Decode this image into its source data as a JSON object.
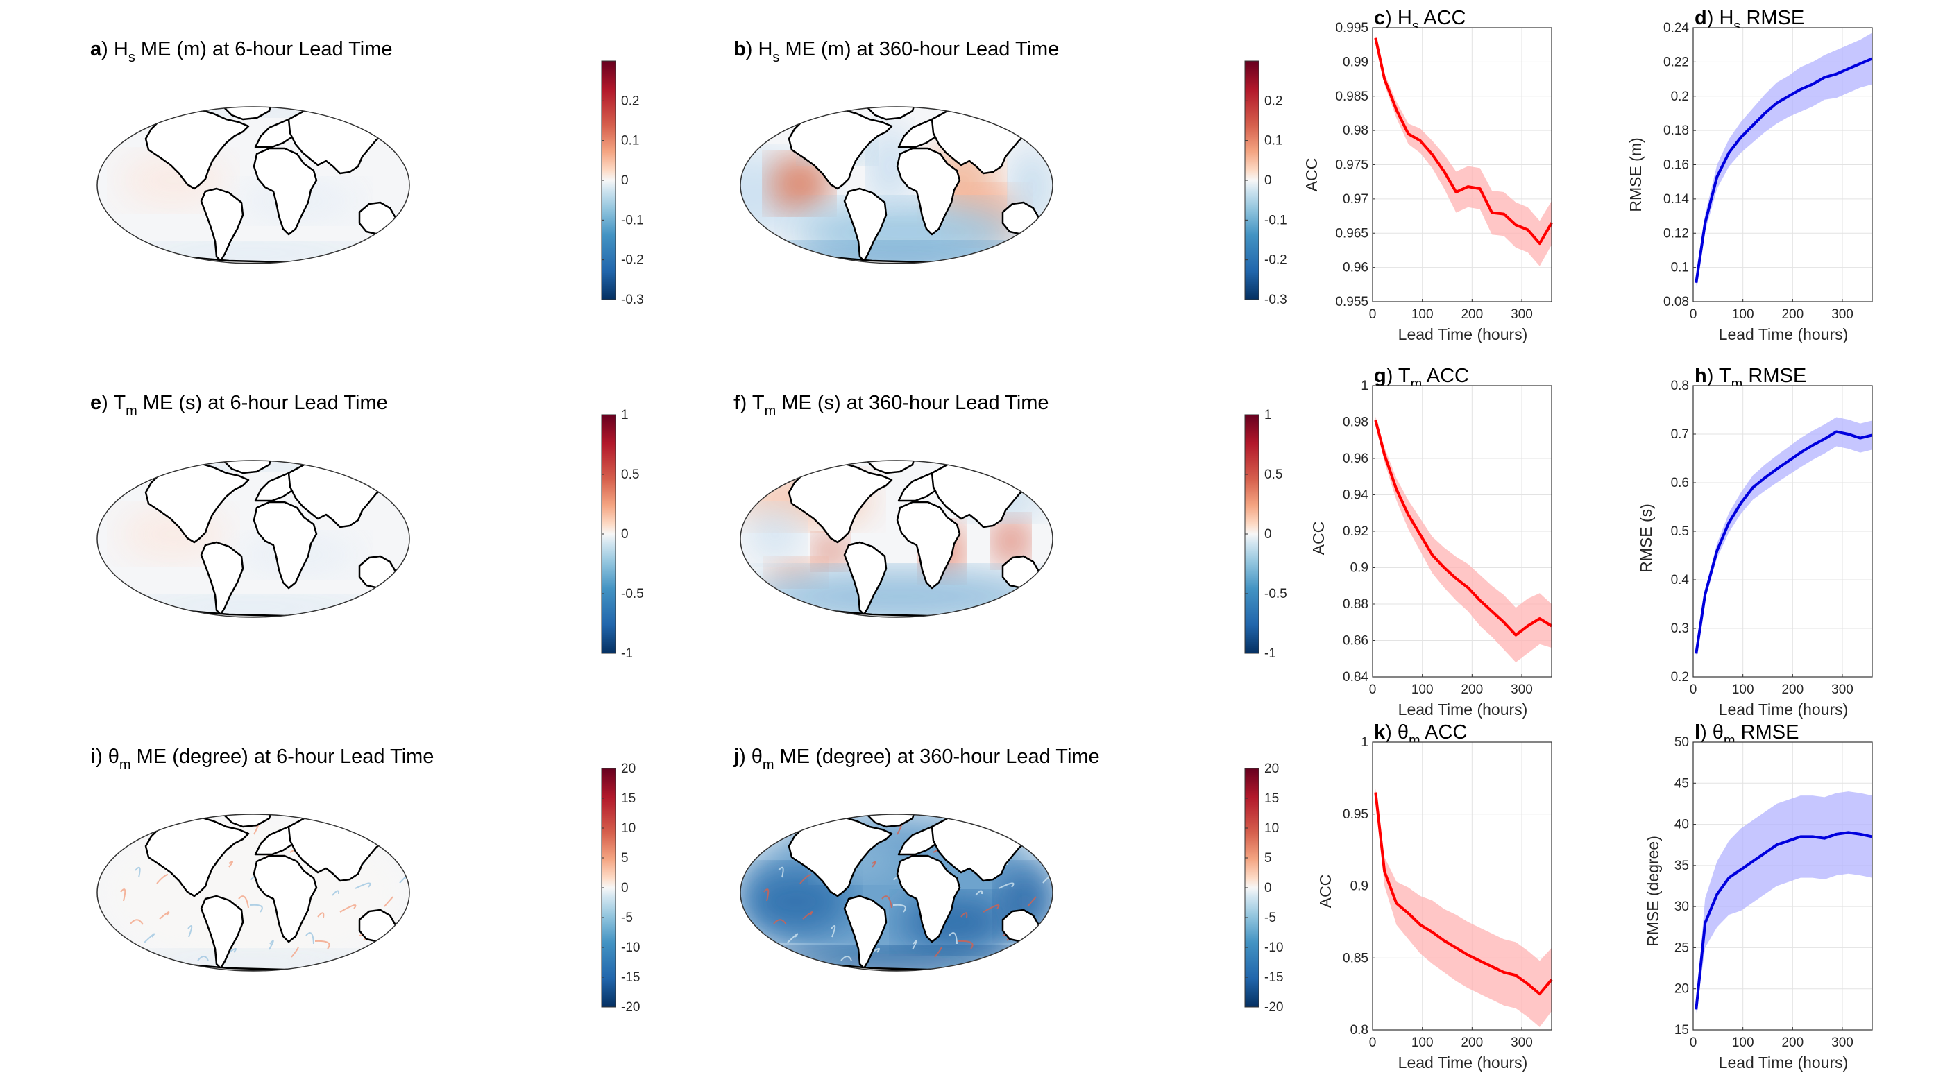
{
  "colors": {
    "red_line": "#ff0000",
    "red_band": "#ffb3b3",
    "blue_line": "#0000dd",
    "blue_band": "#b3b3ff",
    "land": "#ffffff",
    "div_neg": "#053061",
    "div_pos": "#67001f"
  },
  "chart_data": [
    {
      "id": "a",
      "type": "map",
      "letter": "a",
      "title_pre": "H",
      "title_sub": "s",
      "title_post": " ME (m) at 6-hour Lead Time",
      "colorbar": {
        "range": [
          -0.3,
          0.3
        ],
        "ticks": [
          "0.2",
          "0.1",
          "0",
          "-0.1",
          "-0.2",
          "-0.3"
        ]
      },
      "pattern": "faint"
    },
    {
      "id": "b",
      "type": "map",
      "letter": "b",
      "title_pre": "H",
      "title_sub": "s",
      "title_post": " ME (m) at 360-hour Lead Time",
      "colorbar": {
        "range": [
          -0.3,
          0.3
        ],
        "ticks": [
          "0.2",
          "0.1",
          "0",
          "-0.1",
          "-0.2",
          "-0.3"
        ]
      },
      "pattern": "hs360"
    },
    {
      "id": "e",
      "type": "map",
      "letter": "e",
      "title_pre": "T",
      "title_sub": "m",
      "title_post": " ME (s) at 6-hour Lead Time",
      "colorbar": {
        "range": [
          -1,
          1
        ],
        "ticks": [
          "1",
          "0.5",
          "0",
          "-0.5",
          "-1"
        ]
      },
      "pattern": "faint"
    },
    {
      "id": "f",
      "type": "map",
      "letter": "f",
      "title_pre": "T",
      "title_sub": "m",
      "title_post": " ME (s) at 360-hour Lead Time",
      "colorbar": {
        "range": [
          -1,
          1
        ],
        "ticks": [
          "1",
          "0.5",
          "0",
          "-0.5",
          "-1"
        ]
      },
      "pattern": "tm360"
    },
    {
      "id": "i",
      "type": "map",
      "letter": "i",
      "title_pre": "θ",
      "title_sub": "m",
      "title_post": " ME (degree) at 6-hour Lead Time",
      "colorbar": {
        "range": [
          -20,
          20
        ],
        "ticks": [
          "20",
          "15",
          "10",
          "5",
          "0",
          "-5",
          "-10",
          "-15",
          "-20"
        ]
      },
      "pattern": "theta6"
    },
    {
      "id": "j",
      "type": "map",
      "letter": "j",
      "title_pre": "θ",
      "title_sub": "m",
      "title_post": " ME (degree) at 360-hour Lead Time",
      "colorbar": {
        "range": [
          -20,
          20
        ],
        "ticks": [
          "20",
          "15",
          "10",
          "5",
          "0",
          "-5",
          "-10",
          "-15",
          "-20"
        ]
      },
      "pattern": "theta360"
    },
    {
      "id": "c",
      "type": "line",
      "letter": "c",
      "title_pre": "H",
      "title_sub": "s",
      "title_post": " ACC",
      "xlabel": "Lead Time (hours)",
      "ylabel": "ACC",
      "xlim": [
        0,
        360
      ],
      "ylim": [
        0.955,
        0.995
      ],
      "xticks": [
        "0",
        "100",
        "200",
        "300"
      ],
      "yticks": [
        "0.955",
        "0.96",
        "0.965",
        "0.97",
        "0.975",
        "0.98",
        "0.985",
        "0.99",
        "0.995"
      ],
      "color": "red",
      "x": [
        6,
        24,
        48,
        72,
        96,
        120,
        144,
        168,
        192,
        216,
        240,
        264,
        288,
        312,
        336,
        360
      ],
      "y": [
        0.9935,
        0.9875,
        0.983,
        0.9795,
        0.9785,
        0.9765,
        0.974,
        0.971,
        0.9718,
        0.9715,
        0.968,
        0.9678,
        0.9662,
        0.9655,
        0.9635,
        0.9665
      ],
      "spread": [
        0.0003,
        0.0008,
        0.0012,
        0.0015,
        0.0018,
        0.002,
        0.0025,
        0.003,
        0.003,
        0.003,
        0.0032,
        0.0032,
        0.0033,
        0.0033,
        0.0033,
        0.0032
      ]
    },
    {
      "id": "d",
      "type": "line",
      "letter": "d",
      "title_pre": "H",
      "title_sub": "s",
      "title_post": " RMSE",
      "xlabel": "Lead Time (hours)",
      "ylabel": "RMSE (m)",
      "xlim": [
        0,
        360
      ],
      "ylim": [
        0.08,
        0.24
      ],
      "xticks": [
        "0",
        "100",
        "200",
        "300"
      ],
      "yticks": [
        "0.08",
        "0.1",
        "0.12",
        "0.14",
        "0.16",
        "0.18",
        "0.2",
        "0.22",
        "0.24"
      ],
      "color": "blue",
      "x": [
        6,
        24,
        48,
        72,
        96,
        120,
        144,
        168,
        192,
        216,
        240,
        264,
        288,
        312,
        336,
        360
      ],
      "y": [
        0.091,
        0.126,
        0.153,
        0.167,
        0.176,
        0.183,
        0.19,
        0.196,
        0.2,
        0.204,
        0.207,
        0.211,
        0.213,
        0.216,
        0.219,
        0.222
      ],
      "spread": [
        0.002,
        0.005,
        0.007,
        0.008,
        0.009,
        0.01,
        0.011,
        0.012,
        0.012,
        0.013,
        0.013,
        0.013,
        0.014,
        0.014,
        0.014,
        0.015
      ]
    },
    {
      "id": "g",
      "type": "line",
      "letter": "g",
      "title_pre": "T",
      "title_sub": "m",
      "title_post": " ACC",
      "xlabel": "Lead Time (hours)",
      "ylabel": "ACC",
      "xlim": [
        0,
        360
      ],
      "ylim": [
        0.84,
        1
      ],
      "xticks": [
        "0",
        "100",
        "200",
        "300"
      ],
      "yticks": [
        "0.84",
        "0.86",
        "0.88",
        "0.9",
        "0.92",
        "0.94",
        "0.96",
        "0.98",
        "1"
      ],
      "color": "red",
      "x": [
        6,
        24,
        48,
        72,
        96,
        120,
        144,
        168,
        192,
        216,
        240,
        264,
        288,
        312,
        336,
        360
      ],
      "y": [
        0.981,
        0.962,
        0.943,
        0.929,
        0.918,
        0.907,
        0.9,
        0.894,
        0.889,
        0.882,
        0.876,
        0.87,
        0.863,
        0.868,
        0.872,
        0.868
      ],
      "spread": [
        0.002,
        0.004,
        0.006,
        0.008,
        0.009,
        0.01,
        0.011,
        0.012,
        0.013,
        0.014,
        0.014,
        0.015,
        0.015,
        0.015,
        0.014,
        0.012
      ]
    },
    {
      "id": "h",
      "type": "line",
      "letter": "h",
      "title_pre": "T",
      "title_sub": "m",
      "title_post": " RMSE",
      "xlabel": "Lead Time (hours)",
      "ylabel": "RMSE (s)",
      "xlim": [
        0,
        360
      ],
      "ylim": [
        0.2,
        0.8
      ],
      "xticks": [
        "0",
        "100",
        "200",
        "300"
      ],
      "yticks": [
        "0.2",
        "0.3",
        "0.4",
        "0.5",
        "0.6",
        "0.7",
        "0.8"
      ],
      "color": "blue",
      "x": [
        6,
        24,
        48,
        72,
        96,
        120,
        144,
        168,
        192,
        216,
        240,
        264,
        288,
        312,
        336,
        360
      ],
      "y": [
        0.248,
        0.37,
        0.46,
        0.518,
        0.558,
        0.59,
        0.61,
        0.628,
        0.645,
        0.662,
        0.677,
        0.69,
        0.705,
        0.7,
        0.692,
        0.698
      ],
      "spread": [
        0.005,
        0.01,
        0.015,
        0.02,
        0.022,
        0.025,
        0.027,
        0.028,
        0.029,
        0.03,
        0.03,
        0.03,
        0.03,
        0.03,
        0.03,
        0.03
      ]
    },
    {
      "id": "k",
      "type": "line",
      "letter": "k",
      "title_pre": "θ",
      "title_sub": "m",
      "title_post": " ACC",
      "xlabel": "Lead Time (hours)",
      "ylabel": "ACC",
      "xlim": [
        0,
        360
      ],
      "ylim": [
        0.8,
        1
      ],
      "xticks": [
        "0",
        "100",
        "200",
        "300"
      ],
      "yticks": [
        "0.8",
        "0.85",
        "0.9",
        "0.95",
        "1"
      ],
      "color": "red",
      "x": [
        6,
        24,
        48,
        72,
        96,
        120,
        144,
        168,
        192,
        216,
        240,
        264,
        288,
        312,
        336,
        360
      ],
      "y": [
        0.965,
        0.91,
        0.888,
        0.881,
        0.873,
        0.868,
        0.862,
        0.857,
        0.852,
        0.848,
        0.844,
        0.84,
        0.838,
        0.832,
        0.825,
        0.835
      ],
      "spread": [
        0.003,
        0.01,
        0.015,
        0.018,
        0.02,
        0.022,
        0.022,
        0.023,
        0.023,
        0.023,
        0.023,
        0.023,
        0.023,
        0.023,
        0.023,
        0.022
      ]
    },
    {
      "id": "l",
      "type": "line",
      "letter": "l",
      "title_pre": "θ",
      "title_sub": "m",
      "title_post": " RMSE",
      "xlabel": "Lead Time (hours)",
      "ylabel": "RMSE (degree)",
      "xlim": [
        0,
        360
      ],
      "ylim": [
        15,
        50
      ],
      "xticks": [
        "0",
        "100",
        "200",
        "300"
      ],
      "yticks": [
        "15",
        "20",
        "25",
        "30",
        "35",
        "40",
        "45",
        "50"
      ],
      "color": "blue",
      "x": [
        6,
        24,
        48,
        72,
        96,
        120,
        144,
        168,
        192,
        216,
        240,
        264,
        288,
        312,
        336,
        360
      ],
      "y": [
        17.5,
        28,
        31.5,
        33.5,
        34.5,
        35.5,
        36.5,
        37.5,
        38,
        38.5,
        38.5,
        38.3,
        38.8,
        39,
        38.8,
        38.5
      ],
      "spread": [
        0.5,
        3,
        4,
        4.5,
        5,
        5,
        5,
        5,
        5,
        5,
        5,
        5,
        5,
        5,
        5,
        5
      ]
    }
  ]
}
